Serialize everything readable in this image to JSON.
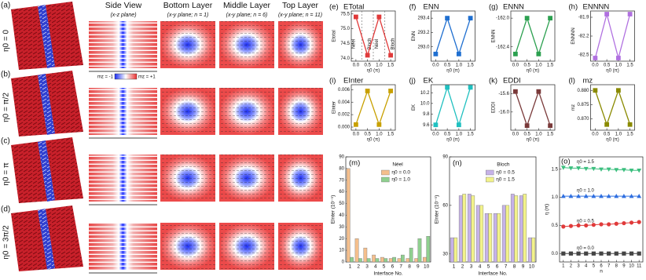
{
  "figure": {
    "rows": [
      {
        "label": "(a)",
        "eta": "η0 = 0"
      },
      {
        "label": "(b)",
        "eta": "η0 = π/2"
      },
      {
        "label": "(c)",
        "eta": "η0 = π"
      },
      {
        "label": "(d)",
        "eta": "η0 = 3π/2"
      }
    ],
    "headers": [
      {
        "title": "Side View",
        "sub": "(x-z plane)"
      },
      {
        "title": "Bottom Layer",
        "sub": "(x-y plane; n = 1)"
      },
      {
        "title": "Middle Layer",
        "sub": "(x-y plane; n = 6)"
      },
      {
        "title": "Top Layer",
        "sub": "(x-y plane; n = 11)"
      }
    ],
    "colorbar": [
      "mz = -1",
      "mz = +1"
    ]
  },
  "chart_data": [
    {
      "type": "line",
      "label": "(e)",
      "title": "ETotal",
      "ylabel": "Etotal",
      "xlabel": "η0 (π)",
      "annotations": [
        "Néel",
        "Bloch",
        "Néel",
        "Bloch"
      ],
      "x": [
        0,
        0.5,
        1,
        1.5
      ],
      "xlim": [
        -0.2,
        1.7
      ],
      "xticks": [
        {
          "value": 0,
          "label": "0.0"
        },
        0.5,
        {
          "value": 1,
          "label": "1.0"
        },
        1.5
      ],
      "ylim": [
        73.9,
        75.6
      ],
      "yticks": [
        {
          "value": 74,
          "label": "74.0"
        },
        74.5,
        {
          "value": 75,
          "label": "75.0"
        },
        75.5
      ],
      "series": [
        {
          "color": "#e03a3a",
          "marker": "square",
          "values": [
            75.4,
            74.1,
            75.4,
            74.1
          ]
        }
      ]
    },
    {
      "type": "line",
      "label": "(f)",
      "title": "ENN",
      "ylabel": "ENN",
      "xlabel": "η0 (π)",
      "x": [
        0,
        0.5,
        1,
        1.5
      ],
      "xlim": [
        -0.2,
        1.7
      ],
      "xticks": [
        {
          "value": 0,
          "label": "0.0"
        },
        0.5,
        {
          "value": 1,
          "label": "1.0"
        },
        1.5
      ],
      "ylim": [
        292.8,
        293.5
      ],
      "yticks": [
        {
          "value": 293,
          "label": "293.0"
        },
        293.2,
        293.4
      ],
      "series": [
        {
          "color": "#1f6fd0",
          "marker": "square",
          "values": [
            292.9,
            293.4,
            292.9,
            293.4
          ]
        }
      ]
    },
    {
      "type": "line",
      "label": "(g)",
      "title": "ENNN",
      "ylabel": "ENNN",
      "xlabel": "η0 (π)",
      "x": [
        0,
        0.5,
        1,
        1.5
      ],
      "xlim": [
        -0.2,
        1.7
      ],
      "xticks": [
        {
          "value": 0,
          "label": "0.0"
        },
        0.5,
        {
          "value": 1,
          "label": "1.0"
        },
        1.5
      ],
      "ylim": [
        -162.6,
        -161.9
      ],
      "yticks": [
        {
          "value": -162,
          "label": "-162.0"
        },
        -162.4
      ],
      "series": [
        {
          "color": "#2ca050",
          "marker": "square",
          "values": [
            -162.5,
            -162.0,
            -162.5,
            -162.0
          ]
        }
      ]
    },
    {
      "type": "line",
      "label": "(h)",
      "title": "ENNNN",
      "ylabel": "ENNNN",
      "xlabel": "η0 (π)",
      "x": [
        0,
        0.5,
        1,
        1.5
      ],
      "xlim": [
        -0.2,
        1.7
      ],
      "xticks": [
        {
          "value": 0,
          "label": "0.0"
        },
        0.5,
        {
          "value": 1,
          "label": "1.0"
        },
        1.5
      ],
      "ylim": [
        -82.6,
        -81.8
      ],
      "yticks": [
        -81.9,
        -82.2,
        -82.5
      ],
      "series": [
        {
          "color": "#b070e0",
          "marker": "square",
          "values": [
            -82.55,
            -81.85,
            -82.55,
            -81.85
          ]
        }
      ]
    },
    {
      "type": "line",
      "label": "(i)",
      "title": "EInter",
      "ylabel": "EInter",
      "xlabel": "η0 (π)",
      "x": [
        0,
        0.5,
        1,
        1.5
      ],
      "xlim": [
        -0.2,
        1.7
      ],
      "xticks": [
        {
          "value": 0,
          "label": "0.0"
        },
        0.5,
        {
          "value": 1,
          "label": "1.0"
        },
        1.5
      ],
      "ylim": [
        -0.0005,
        0.0068
      ],
      "yticks": [
        {
          "value": 0,
          "label": "0.000"
        },
        0.002,
        0.004,
        0.006
      ],
      "series": [
        {
          "color": "#c8a000",
          "marker": "square",
          "values": [
            0.0004,
            0.0058,
            0.0004,
            0.0058
          ]
        }
      ]
    },
    {
      "type": "line",
      "label": "(j)",
      "title": "EK",
      "ylabel": "EK",
      "xlabel": "η0 (π)",
      "x": [
        0,
        0.5,
        1,
        1.5
      ],
      "xlim": [
        -0.2,
        1.7
      ],
      "xticks": [
        {
          "value": 0,
          "label": "0.0"
        },
        0.5,
        {
          "value": 1,
          "label": "1.0"
        },
        1.5
      ],
      "ylim": [
        9.5,
        10.35
      ],
      "yticks": [
        9.6,
        9.8,
        {
          "value": 10,
          "label": "10.0"
        },
        10.2
      ],
      "series": [
        {
          "color": "#20c0c0",
          "marker": "square",
          "values": [
            9.6,
            10.3,
            9.6,
            10.3
          ]
        }
      ]
    },
    {
      "type": "line",
      "label": "(k)",
      "title": "EDDI",
      "ylabel": "EDDI",
      "xlabel": "η0 (π)",
      "x": [
        0,
        0.5,
        1,
        1.5
      ],
      "xlim": [
        -0.2,
        1.7
      ],
      "xticks": [
        {
          "value": 0,
          "label": "0.0"
        },
        0.5,
        {
          "value": 1,
          "label": "1.0"
        },
        1.5
      ],
      "ylim": [
        -16.4,
        -15.4
      ],
      "yticks": [
        -15.6,
        {
          "value": -16,
          "label": "-16.0"
        }
      ],
      "series": [
        {
          "color": "#7a3a3a",
          "marker": "square",
          "values": [
            -15.55,
            -16.3,
            -15.55,
            -16.3
          ]
        }
      ]
    },
    {
      "type": "line",
      "label": "(l)",
      "title": "mz",
      "ylabel": "mz",
      "xlabel": "η0 (π)",
      "x": [
        0,
        0.5,
        1,
        1.5
      ],
      "xlim": [
        -0.2,
        1.7
      ],
      "xticks": [
        {
          "value": 0,
          "label": "0.0"
        },
        0.5,
        {
          "value": 1,
          "label": "1.0"
        },
        1.5
      ],
      "ylim": [
        0.866,
        0.882
      ],
      "yticks": [
        {
          "value": 0.87,
          "label": "0.870"
        },
        0.875,
        {
          "value": 0.88,
          "label": "0.880"
        }
      ],
      "series": [
        {
          "color": "#8a8a00",
          "marker": "square",
          "values": [
            0.88,
            0.868,
            0.88,
            0.868
          ]
        }
      ]
    },
    {
      "type": "bar",
      "label": "(m)",
      "legend_title": "Néel",
      "ylabel": "EInter (10⁻⁵)",
      "xlabel": "Interface No.",
      "categories": [
        "1",
        "2",
        "3",
        "4",
        "5",
        "6",
        "7",
        "8",
        "9",
        "10"
      ],
      "ylim": [
        0,
        90
      ],
      "yticks": [
        0,
        10,
        20,
        30,
        40,
        50,
        60,
        70,
        80,
        90
      ],
      "series": [
        {
          "name": "η0 = 0.0",
          "color": "#f5bf8c",
          "values": [
            80,
            20,
            12,
            6,
            4,
            3,
            3,
            3,
            3,
            4
          ]
        },
        {
          "name": "η0 = 1.0",
          "color": "#8fd08f",
          "values": [
            4,
            3,
            3,
            3,
            3,
            4,
            6,
            12,
            20,
            22
          ]
        }
      ]
    },
    {
      "type": "bar",
      "label": "(n)",
      "legend_title": "Bloch",
      "ylabel": "EInter (10⁻⁵)",
      "xlabel": "Interface No.",
      "categories": [
        "1",
        "2",
        "3",
        "4",
        "5",
        "6",
        "7",
        "8",
        "9",
        "10"
      ],
      "ylim": [
        25,
        90
      ],
      "yticks": [
        30,
        60,
        90
      ],
      "series": [
        {
          "name": "η0 = 0.5",
          "color": "#c6b2e8",
          "values": [
            40,
            66,
            67,
            60,
            55,
            55,
            60,
            67,
            66,
            40
          ]
        },
        {
          "name": "η0 = 1.5",
          "color": "#f2f28a",
          "values": [
            40,
            67,
            66,
            60,
            55,
            55,
            60,
            66,
            67,
            40
          ]
        }
      ]
    },
    {
      "type": "line",
      "label": "(o)",
      "ylabel": "η (π)",
      "xlabel": "n",
      "x": [
        1,
        2,
        3,
        4,
        5,
        6,
        7,
        8,
        9,
        10,
        11
      ],
      "xlim": [
        0.5,
        11.5
      ],
      "xticks": [
        1,
        2,
        3,
        4,
        5,
        6,
        7,
        8,
        9,
        10,
        11
      ],
      "ylim": [
        -0.15,
        1.72
      ],
      "yticks": [
        {
          "value": 0,
          "label": "0.0"
        },
        0.5,
        {
          "value": 1,
          "label": "1.0"
        },
        1.5
      ],
      "series": [
        {
          "name": "η0 = 1.5",
          "color": "#3cbf7f",
          "marker": "triangle-down",
          "values": [
            1.53,
            1.52,
            1.52,
            1.51,
            1.51,
            1.5,
            1.5,
            1.49,
            1.49,
            1.48,
            1.48
          ]
        },
        {
          "name": "η0 = 1.0",
          "color": "#2f6fe0",
          "marker": "triangle-up",
          "values": [
            1.02,
            1.02,
            1.02,
            1.02,
            1.02,
            1.02,
            1.02,
            1.02,
            1.02,
            1.02,
            1.02
          ]
        },
        {
          "name": "η0 = 0.5",
          "color": "#e03a3a",
          "marker": "circle",
          "values": [
            0.48,
            0.49,
            0.5,
            0.5,
            0.51,
            0.52,
            0.52,
            0.53,
            0.54,
            0.55,
            0.56
          ]
        },
        {
          "name": "η0 = 0.0",
          "color": "#444444",
          "marker": "square",
          "values": [
            0,
            0,
            0,
            0,
            0,
            0,
            0,
            0,
            0,
            0,
            0
          ]
        }
      ]
    }
  ]
}
